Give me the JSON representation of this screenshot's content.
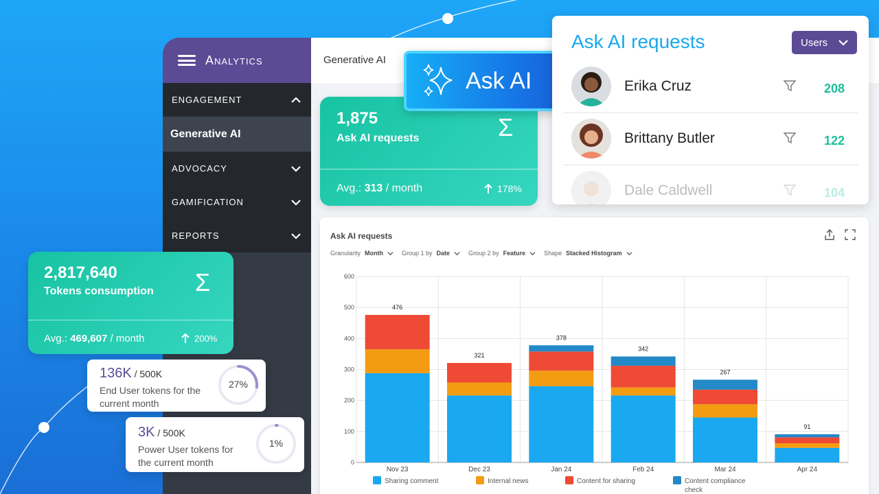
{
  "sidebar": {
    "app_name": "Analytics",
    "sections": [
      {
        "label": "ENGAGEMENT",
        "expanded": true
      },
      {
        "label": "ADVOCACY",
        "expanded": false
      },
      {
        "label": "GAMIFICATION",
        "expanded": false
      },
      {
        "label": "REPORTS",
        "expanded": false
      }
    ],
    "active_item": "Generative AI"
  },
  "topbar": {
    "title": "Generative AI"
  },
  "ask_ai_button": {
    "label": "Ask AI",
    "icon": "sparkle-icon"
  },
  "kpi_requests": {
    "value": "1,875",
    "label": "Ask AI requests",
    "avg_prefix": "Avg.: ",
    "avg_value": "313",
    "avg_suffix": " / month",
    "trend": "178%",
    "icon": "sigma-icon"
  },
  "kpi_tokens": {
    "value": "2,817,640",
    "label": "Tokens consumption",
    "avg_prefix": "Avg.: ",
    "avg_value": "469,607",
    "avg_suffix": " / month",
    "trend": "200%",
    "icon": "sigma-icon"
  },
  "progress_end_user": {
    "value": "136K",
    "limit": " / 500K",
    "label_line1": "End User tokens for the",
    "label_line2": "current month",
    "percent_text": "27%",
    "percent": 27
  },
  "progress_power_user": {
    "value": "3K",
    "limit": " / 500K",
    "label_line1": "Power User tokens for",
    "label_line2": "the current month",
    "percent_text": "1%",
    "percent": 1
  },
  "requests_panel": {
    "title": "Ask AI requests",
    "dropdown": "Users",
    "users": [
      {
        "name": "Erika Cruz",
        "count": "208"
      },
      {
        "name": "Brittany Butler",
        "count": "122"
      },
      {
        "name": "Dale Caldwell",
        "count": "104"
      }
    ]
  },
  "chart_panel": {
    "title": "Ask AI requests",
    "controls": [
      {
        "label": "Granularity",
        "value": "Month"
      },
      {
        "label": "Group 1 by",
        "value": "Date"
      },
      {
        "label": "Group 2 by",
        "value": "Feature"
      },
      {
        "label": "Shape",
        "value": "Stacked Histogram"
      }
    ]
  },
  "colors": {
    "accent_purple": "#5b4b95",
    "teal": "#1cbf9b",
    "sharing_comment": "#1aa8f0",
    "internal_news": "#f39c12",
    "content_for_sharing": "#ee4a36",
    "content_compliance_check": "#2389c8"
  },
  "chart_data": {
    "type": "bar",
    "stacked": true,
    "categories": [
      "Nov 23",
      "Dec 23",
      "Jan 24",
      "Feb 24",
      "Mar 24",
      "Apr 24"
    ],
    "series": [
      {
        "name": "Sharing comment",
        "values": [
          288,
          216,
          246,
          216,
          145,
          47
        ],
        "color": "#1aa8f0"
      },
      {
        "name": "Internal news",
        "values": [
          77,
          42,
          50,
          26,
          43,
          15
        ],
        "color": "#f39c12"
      },
      {
        "name": "Content for sharing",
        "values": [
          111,
          63,
          62,
          70,
          47,
          19
        ],
        "color": "#ee4a36"
      },
      {
        "name": "Content compliance check",
        "values": [
          0,
          0,
          20,
          30,
          32,
          10
        ],
        "color": "#2389c8"
      }
    ],
    "totals": [
      "476",
      "321",
      "378",
      "342",
      "267",
      "91"
    ],
    "yticks": [
      "0",
      "100",
      "200",
      "300",
      "400",
      "500",
      "600"
    ],
    "ylim": [
      0,
      600
    ],
    "grid": true,
    "legend_position": "bottom"
  }
}
